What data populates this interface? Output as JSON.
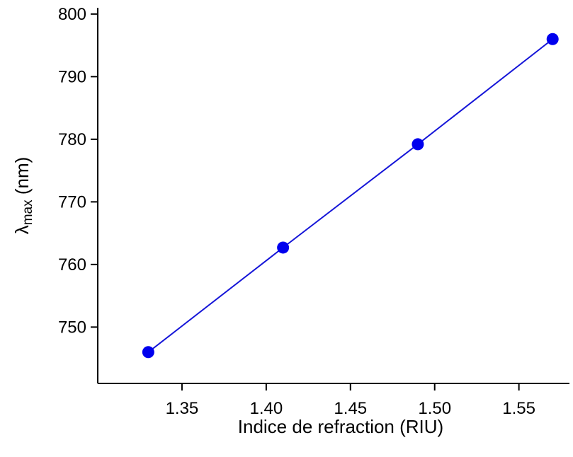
{
  "chart_data": {
    "type": "line",
    "xlabel": "Indice de refraction (RIU)",
    "ylabel": {
      "symbol": "λ",
      "subscript": "max",
      "unit": " (nm)"
    },
    "xlim": [
      1.3,
      1.58
    ],
    "ylim": [
      741,
      801
    ],
    "xticks": [
      1.35,
      1.4,
      1.45,
      1.5,
      1.55
    ],
    "xtick_labels": [
      "1.35",
      "1.40",
      "1.45",
      "1.50",
      "1.55"
    ],
    "yticks": [
      750,
      760,
      770,
      780,
      790,
      800
    ],
    "ytick_labels": [
      "750",
      "760",
      "770",
      "780",
      "790",
      "800"
    ],
    "grid": false,
    "legend": "none",
    "series": [
      {
        "x": [
          1.33,
          1.41,
          1.49,
          1.57
        ],
        "y": [
          746.0,
          762.7,
          779.2,
          796.0
        ],
        "color": "#1515d8",
        "marker_color": "#0000ee",
        "marker": "circle"
      }
    ]
  }
}
